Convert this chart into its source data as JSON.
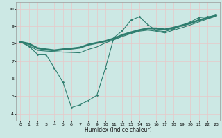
{
  "xlabel": "Humidex (Indice chaleur)",
  "background_color": "#cce8e4",
  "grid_color": "#e8c8c8",
  "line_color": "#2e7d6e",
  "x_ticks": [
    0,
    1,
    2,
    3,
    4,
    5,
    6,
    7,
    8,
    9,
    10,
    11,
    12,
    13,
    14,
    15,
    16,
    17,
    18,
    19,
    20,
    21,
    22,
    23
  ],
  "y_ticks": [
    4,
    5,
    6,
    7,
    8,
    9,
    10
  ],
  "ylim": [
    3.6,
    10.4
  ],
  "xlim": [
    -0.5,
    23.5
  ],
  "series1_x": [
    0,
    1,
    2,
    3,
    4,
    5,
    6,
    7,
    8,
    9,
    10,
    11,
    12,
    13,
    14,
    15,
    16,
    17,
    18,
    19,
    20,
    21,
    22,
    23
  ],
  "series1_y": [
    8.1,
    7.85,
    7.4,
    7.4,
    6.6,
    5.8,
    4.35,
    4.5,
    4.75,
    5.05,
    6.6,
    8.35,
    8.75,
    9.35,
    9.55,
    9.1,
    8.75,
    8.7,
    8.85,
    9.05,
    9.25,
    9.5,
    9.55,
    9.62
  ],
  "series2_x": [
    0,
    1,
    2,
    3,
    4,
    5,
    6,
    7,
    8,
    9,
    10,
    11,
    12,
    13,
    14,
    15,
    16,
    17,
    18,
    19,
    20,
    21,
    22,
    23
  ],
  "series2_y": [
    8.1,
    8.0,
    7.75,
    7.68,
    7.62,
    7.68,
    7.72,
    7.78,
    7.95,
    8.05,
    8.15,
    8.3,
    8.5,
    8.65,
    8.78,
    8.88,
    8.88,
    8.82,
    8.92,
    9.05,
    9.18,
    9.35,
    9.48,
    9.62
  ],
  "series3_x": [
    0,
    1,
    2,
    3,
    4,
    5,
    6,
    7,
    8,
    9,
    10,
    11,
    12,
    13,
    14,
    15,
    16,
    17,
    18,
    19,
    20,
    21,
    22,
    23
  ],
  "series3_y": [
    8.1,
    7.9,
    7.62,
    7.58,
    7.55,
    7.52,
    7.5,
    7.48,
    7.68,
    7.82,
    8.05,
    8.22,
    8.42,
    8.58,
    8.72,
    8.78,
    8.72,
    8.62,
    8.78,
    8.92,
    9.08,
    9.25,
    9.42,
    9.58
  ],
  "series1_linewidth": 0.8,
  "series2_linewidth": 2.0,
  "series3_linewidth": 0.8,
  "marker_size": 1.5,
  "tick_fontsize": 4.5,
  "xlabel_fontsize": 5.5
}
